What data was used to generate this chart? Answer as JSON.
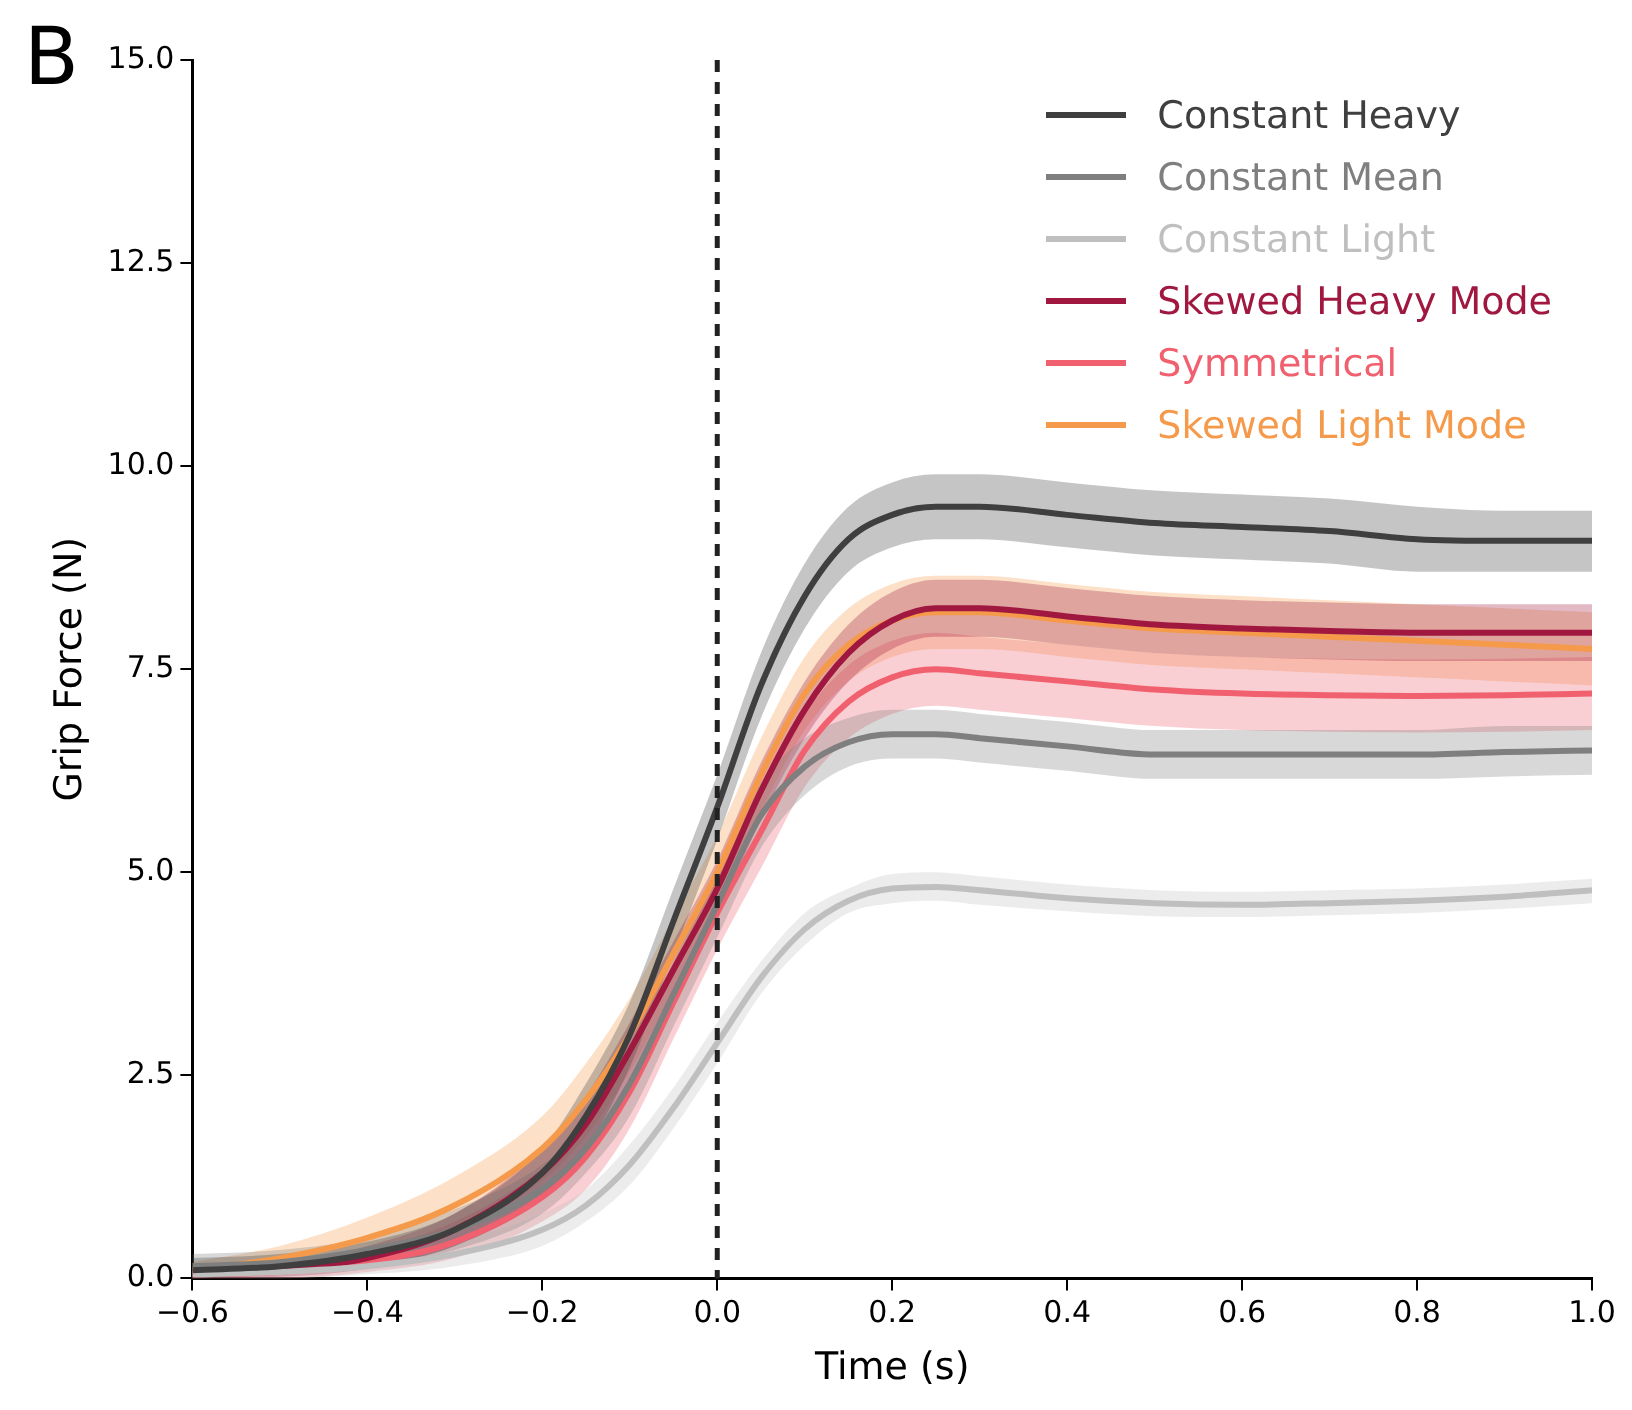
{
  "chart_data": {
    "type": "line",
    "xlabel": "Time (s)",
    "ylabel": "Grip Force (N)",
    "annotations": [
      "B"
    ],
    "x": [
      -0.6,
      -0.5,
      -0.4,
      -0.3,
      -0.2,
      -0.15,
      -0.1,
      -0.05,
      0,
      0.05,
      0.1,
      0.15,
      0.2,
      0.25,
      0.3,
      0.4,
      0.5,
      0.6,
      0.7,
      0.8,
      0.9,
      1.0
    ],
    "xlim": [
      -0.6,
      1.0
    ],
    "xticks": [
      {
        "value": -0.6,
        "label": "−0.6"
      },
      {
        "value": -0.4,
        "label": "−0.4"
      },
      {
        "value": -0.2,
        "label": "−0.2"
      },
      {
        "value": 0,
        "label": "0.0"
      },
      {
        "value": 0.2,
        "label": "0.2"
      },
      {
        "value": 0.4,
        "label": "0.4"
      },
      {
        "value": 0.6,
        "label": "0.6"
      },
      {
        "value": 0.8,
        "label": "0.8"
      },
      {
        "value": 1.0,
        "label": "1.0"
      }
    ],
    "ylim": [
      0,
      15
    ],
    "yticks": [
      {
        "value": 0,
        "label": "0.0"
      },
      {
        "value": 2.5,
        "label": "2.5"
      },
      {
        "value": 5,
        "label": "5.0"
      },
      {
        "value": 7.5,
        "label": "7.5"
      },
      {
        "value": 10,
        "label": "10.0"
      },
      {
        "value": 12.5,
        "label": "12.5"
      },
      {
        "value": 15,
        "label": "15.0"
      }
    ],
    "grid": false,
    "legend": "top right",
    "marker": "none",
    "line_style": "solid",
    "ref_lines": [
      {
        "axis": "x",
        "value": 0,
        "color": "#222222",
        "line_style": "dashed"
      }
    ],
    "series": [
      {
        "name": "Constant Heavy",
        "color": "#3f3f3f",
        "values": [
          0.1,
          0.15,
          0.3,
          0.6,
          1.3,
          2.0,
          3.0,
          4.4,
          5.8,
          7.3,
          8.4,
          9.1,
          9.4,
          9.5,
          9.5,
          9.4,
          9.3,
          9.25,
          9.2,
          9.1,
          9.08,
          9.08
        ],
        "lower": [
          0.0,
          0.05,
          0.15,
          0.4,
          1.0,
          1.6,
          2.6,
          4.0,
          5.4,
          6.9,
          8.0,
          8.7,
          9.0,
          9.1,
          9.1,
          9.0,
          8.9,
          8.85,
          8.8,
          8.7,
          8.7,
          8.7
        ],
        "upper": [
          0.25,
          0.3,
          0.45,
          0.8,
          1.6,
          2.4,
          3.4,
          4.8,
          6.2,
          7.7,
          8.8,
          9.5,
          9.8,
          9.9,
          9.9,
          9.8,
          9.7,
          9.65,
          9.6,
          9.5,
          9.45,
          9.45
        ]
      },
      {
        "name": "Constant Mean",
        "color": "#7f7f7f",
        "values": [
          0.15,
          0.2,
          0.35,
          0.6,
          1.1,
          1.6,
          2.4,
          3.5,
          4.6,
          5.7,
          6.3,
          6.6,
          6.7,
          6.7,
          6.65,
          6.55,
          6.45,
          6.45,
          6.45,
          6.45,
          6.48,
          6.5
        ],
        "lower": [
          0.0,
          0.05,
          0.15,
          0.35,
          0.8,
          1.3,
          2.0,
          3.1,
          4.2,
          5.3,
          5.95,
          6.3,
          6.4,
          6.4,
          6.35,
          6.25,
          6.15,
          6.15,
          6.15,
          6.15,
          6.18,
          6.2
        ],
        "upper": [
          0.3,
          0.35,
          0.5,
          0.85,
          1.4,
          1.9,
          2.8,
          3.9,
          5.0,
          6.1,
          6.65,
          6.9,
          7.0,
          7.0,
          6.95,
          6.85,
          6.75,
          6.75,
          6.75,
          6.75,
          6.8,
          6.8
        ]
      },
      {
        "name": "Constant Light",
        "color": "#bfbfbf",
        "values": [
          0.05,
          0.08,
          0.15,
          0.3,
          0.6,
          0.9,
          1.4,
          2.1,
          2.9,
          3.7,
          4.3,
          4.65,
          4.8,
          4.82,
          4.78,
          4.68,
          4.62,
          4.6,
          4.62,
          4.65,
          4.7,
          4.78
        ],
        "lower": [
          0.0,
          0.0,
          0.05,
          0.15,
          0.4,
          0.7,
          1.15,
          1.85,
          2.65,
          3.5,
          4.1,
          4.5,
          4.62,
          4.65,
          4.6,
          4.52,
          4.46,
          4.45,
          4.47,
          4.5,
          4.55,
          4.62
        ],
        "upper": [
          0.12,
          0.16,
          0.25,
          0.45,
          0.8,
          1.1,
          1.65,
          2.35,
          3.15,
          3.9,
          4.5,
          4.8,
          4.98,
          5.0,
          4.95,
          4.85,
          4.78,
          4.76,
          4.78,
          4.8,
          4.85,
          4.92
        ]
      },
      {
        "name": "Skewed Heavy Mode",
        "color": "#a0173f",
        "values": [
          0.05,
          0.1,
          0.25,
          0.6,
          1.3,
          1.9,
          2.8,
          3.8,
          4.8,
          6.0,
          7.0,
          7.7,
          8.1,
          8.25,
          8.25,
          8.15,
          8.05,
          8.0,
          7.97,
          7.95,
          7.95,
          7.95
        ],
        "lower": [
          0.0,
          0.02,
          0.12,
          0.4,
          1.0,
          1.55,
          2.45,
          3.45,
          4.45,
          5.65,
          6.65,
          7.35,
          7.75,
          7.9,
          7.9,
          7.8,
          7.7,
          7.65,
          7.62,
          7.6,
          7.6,
          7.6
        ],
        "upper": [
          0.12,
          0.2,
          0.4,
          0.8,
          1.6,
          2.25,
          3.15,
          4.15,
          5.15,
          6.35,
          7.35,
          8.05,
          8.45,
          8.6,
          8.6,
          8.5,
          8.4,
          8.35,
          8.32,
          8.3,
          8.3,
          8.3
        ]
      },
      {
        "name": "Symmetrical",
        "color": "#f0606e",
        "values": [
          0.05,
          0.08,
          0.2,
          0.45,
          1.0,
          1.5,
          2.3,
          3.4,
          4.5,
          5.5,
          6.5,
          7.1,
          7.4,
          7.5,
          7.45,
          7.35,
          7.25,
          7.2,
          7.18,
          7.17,
          7.18,
          7.2
        ],
        "lower": [
          0.0,
          0.0,
          0.08,
          0.25,
          0.7,
          1.1,
          1.85,
          2.95,
          4.05,
          5.05,
          6.05,
          6.65,
          6.95,
          7.05,
          7.0,
          6.9,
          6.8,
          6.75,
          6.73,
          6.72,
          6.73,
          6.75
        ],
        "upper": [
          0.15,
          0.2,
          0.35,
          0.7,
          1.35,
          1.9,
          2.75,
          3.85,
          4.95,
          5.95,
          6.95,
          7.55,
          7.85,
          7.95,
          7.9,
          7.8,
          7.7,
          7.65,
          7.63,
          7.62,
          7.63,
          7.65
        ]
      },
      {
        "name": "Skewed Light Mode",
        "color": "#f59a4a",
        "values": [
          0.1,
          0.25,
          0.5,
          0.9,
          1.6,
          2.2,
          3.0,
          4.0,
          5.0,
          6.2,
          7.2,
          7.8,
          8.1,
          8.2,
          8.2,
          8.1,
          8.0,
          7.95,
          7.9,
          7.85,
          7.8,
          7.75
        ],
        "lower": [
          0.0,
          0.1,
          0.3,
          0.6,
          1.2,
          1.75,
          2.55,
          3.55,
          4.55,
          5.75,
          6.75,
          7.35,
          7.65,
          7.75,
          7.75,
          7.65,
          7.55,
          7.5,
          7.45,
          7.4,
          7.35,
          7.3
        ],
        "upper": [
          0.2,
          0.4,
          0.75,
          1.25,
          2.0,
          2.65,
          3.45,
          4.45,
          5.45,
          6.65,
          7.65,
          8.25,
          8.55,
          8.65,
          8.65,
          8.55,
          8.45,
          8.4,
          8.35,
          8.3,
          8.25,
          8.2
        ]
      }
    ]
  }
}
